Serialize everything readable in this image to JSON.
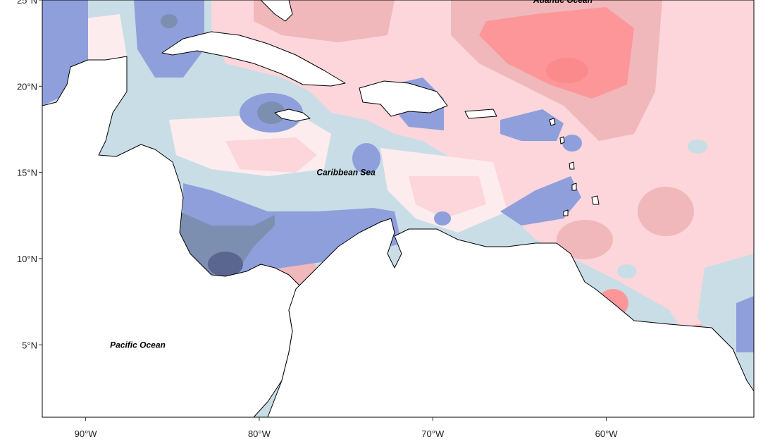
{
  "map": {
    "lon_range": [
      -92.5,
      -51.5
    ],
    "lat_range": [
      0.8,
      25.0
    ],
    "x_ticks": [
      {
        "lon": -90,
        "label": "90°W"
      },
      {
        "lon": -80,
        "label": "80°W"
      },
      {
        "lon": -70,
        "label": "70°W"
      },
      {
        "lon": -60,
        "label": "60°W"
      }
    ],
    "y_ticks": [
      {
        "lat": 25,
        "label": "25°N"
      },
      {
        "lat": 20,
        "label": "20°N"
      },
      {
        "lat": 15,
        "label": "15°N"
      },
      {
        "lat": 10,
        "label": "10°N"
      },
      {
        "lat": 5,
        "label": "5°N"
      }
    ],
    "places": [
      {
        "name": "Atlantic Ocean",
        "lon": -62.5,
        "lat": 25.0
      },
      {
        "name": "Caribbean Sea",
        "lon": -75.0,
        "lat": 15.0
      },
      {
        "name": "Pacific Ocean",
        "lon": -87.0,
        "lat": 5.0
      }
    ],
    "colors": {
      "strong_negative": "#5a6690",
      "negative_2": "#7d8fb0",
      "negative_1": "#8e9fdc",
      "near_zero_cool": "#c9dde6",
      "near_zero_warm": "#fdecee",
      "positive_1": "#fcd6da",
      "positive_2": "#f0b8ba",
      "positive_3": "#fd9698",
      "land": "#ffffff",
      "coastline": "#000000"
    }
  }
}
